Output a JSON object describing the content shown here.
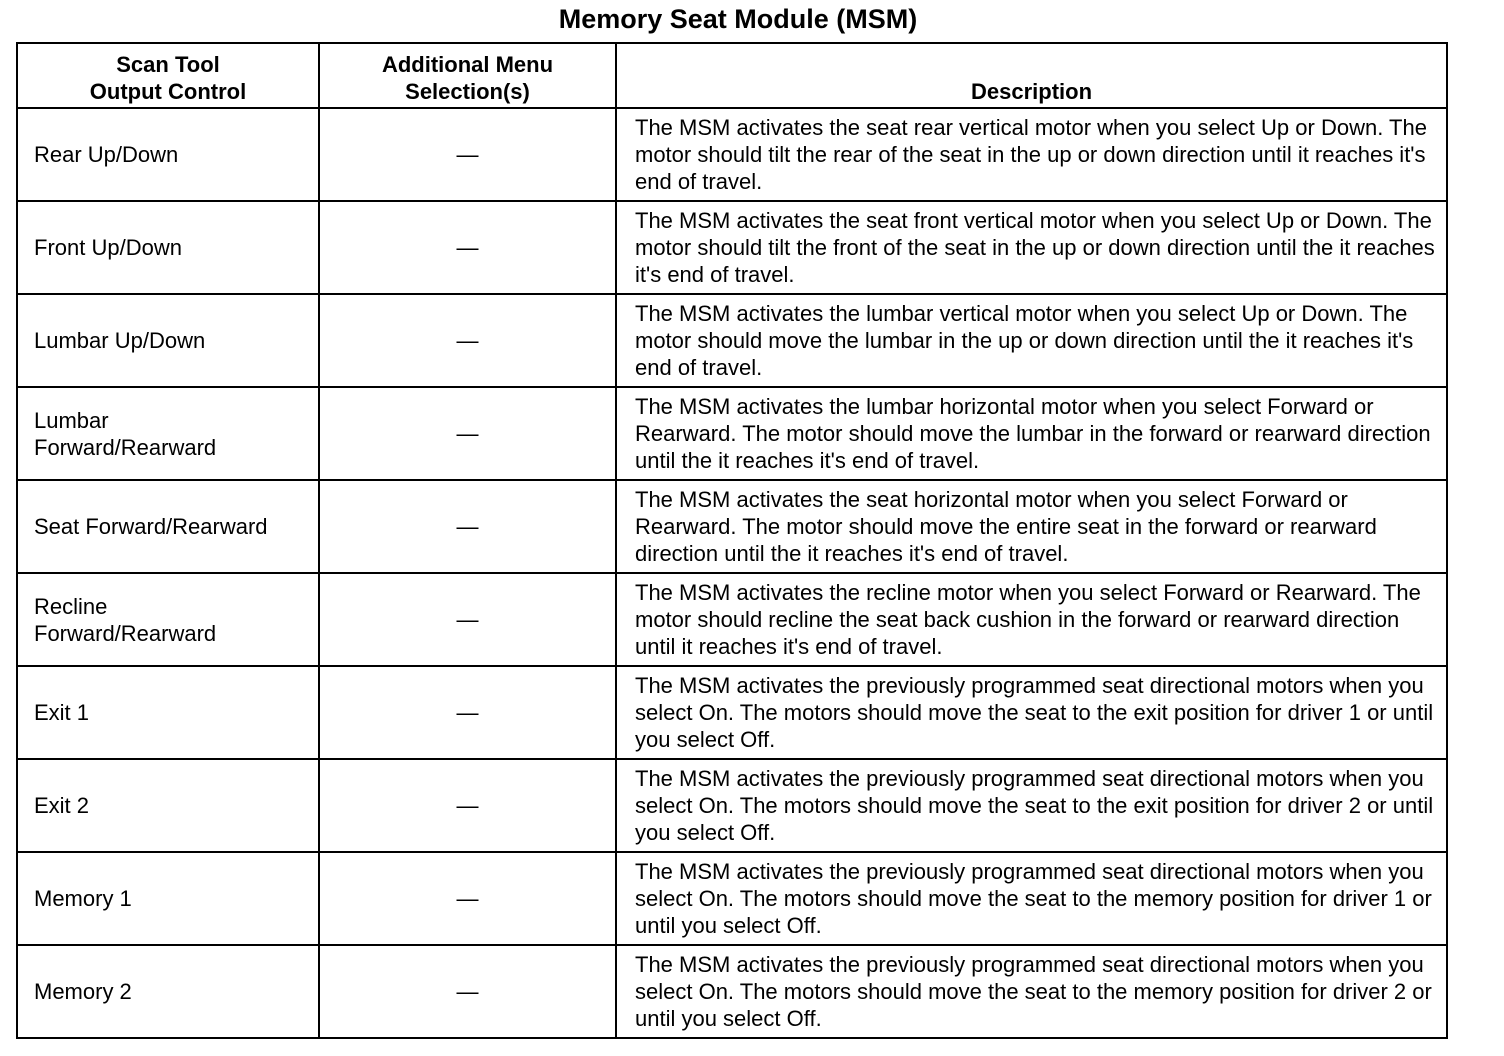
{
  "title": "Memory Seat Module (MSM)",
  "headers": [
    "Scan Tool Output Control",
    "Additional Menu Selection(s)",
    "Description"
  ],
  "header_lines": {
    "c1": [
      "Scan Tool",
      "Output Control"
    ],
    "c2": [
      "Additional Menu",
      "Selection(s)"
    ]
  },
  "rows": [
    {
      "control": [
        "Rear Up/Down"
      ],
      "menu": "—",
      "description": "The MSM activates the seat rear vertical motor when you select Up or Down. The motor should tilt the rear of the seat in the up or down direction until it reaches it's end of travel."
    },
    {
      "control": [
        "Front Up/Down"
      ],
      "menu": "—",
      "description": "The MSM activates the seat front vertical motor when you select Up or Down. The motor should tilt the front of the seat in the up or down direction until the it reaches it's end of travel."
    },
    {
      "control": [
        "Lumbar Up/Down"
      ],
      "menu": "—",
      "description": "The MSM activates the lumbar vertical motor when you select Up or Down. The motor should move the lumbar in the up or down direction until the it reaches it's end of travel."
    },
    {
      "control": [
        "Lumbar",
        "Forward/Rearward"
      ],
      "menu": "—",
      "description": "The MSM activates the lumbar horizontal motor when you select Forward or Rearward. The motor should move the lumbar in the forward or rearward direction until the it reaches it's end of travel."
    },
    {
      "control": [
        "Seat Forward/Rearward"
      ],
      "menu": "—",
      "description": "The MSM activates the seat horizontal motor when you select Forward or Rearward. The motor should move the entire seat in the forward or rearward direction until the it reaches it's end of travel."
    },
    {
      "control": [
        "Recline",
        "Forward/Rearward"
      ],
      "menu": "—",
      "description": "The MSM activates the recline motor when you select Forward or Rearward. The motor should recline the seat back cushion in the forward or rearward direction until it reaches it's end of travel."
    },
    {
      "control": [
        "Exit 1"
      ],
      "menu": "—",
      "description": "The MSM activates the previously programmed seat directional motors when you select On. The motors should move the seat to the exit position for driver 1 or until you select Off."
    },
    {
      "control": [
        "Exit 2"
      ],
      "menu": "—",
      "description": "The MSM activates the previously programmed seat directional motors when you select On. The motors should move the seat to the exit position for driver 2 or until you select Off."
    },
    {
      "control": [
        "Memory 1"
      ],
      "menu": "—",
      "description": "The MSM activates the previously programmed seat directional motors when you select On. The motors should move the seat to the memory position for driver 1 or until you select Off."
    },
    {
      "control": [
        "Memory 2"
      ],
      "menu": "—",
      "description": "The MSM activates the previously programmed seat directional motors when you select On. The motors should move the seat to the memory position for driver 2 or until you select Off."
    }
  ]
}
